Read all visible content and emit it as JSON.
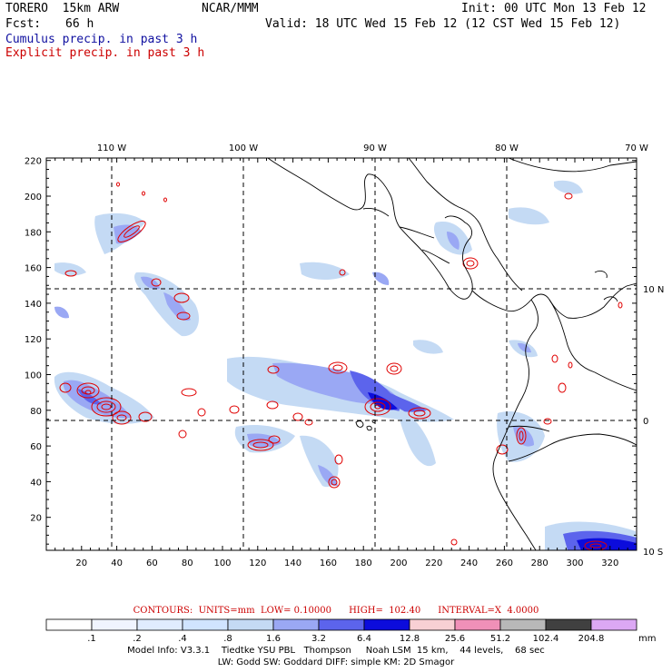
{
  "header": {
    "model": "TORERO  15km ARW",
    "org": "NCAR/MMM",
    "init": "Init: 00 UTC Mon 13 Feb 12",
    "fcst_label": "Fcst:",
    "fcst_value": "66 h",
    "valid": "Valid: 18 UTC Wed 15 Feb 12 (12 CST Wed 15 Feb 12)",
    "legend_cumulus": "Cumulus precip. in past 3 h",
    "legend_explicit": "Explicit precip. in past 3 h"
  },
  "colors": {
    "cumulus_text": "#1010a0",
    "explicit_text": "#cc0000",
    "explicit_contour": "#e00000"
  },
  "map": {
    "lon_labels": [
      "110 W",
      "100 W",
      "90 W",
      "80 W",
      "70 W"
    ],
    "lat_labels": [
      "10 N",
      "0",
      "10 S"
    ],
    "x_ticks": [
      "20",
      "40",
      "60",
      "80",
      "100",
      "120",
      "140",
      "160",
      "180",
      "200",
      "220",
      "240",
      "260",
      "280",
      "300",
      "320"
    ],
    "y_ticks": [
      "20",
      "40",
      "60",
      "80",
      "100",
      "120",
      "140",
      "160",
      "180",
      "200",
      "220"
    ]
  },
  "contours_line": "CONTOURS:  UNITS=mm  LOW= 0.10000      HIGH=  102.40      INTERVAL=X  4.0000",
  "color_scale": {
    "labels": [
      ".1",
      ".2",
      ".4",
      ".8",
      "1.6",
      "3.2",
      "6.4",
      "12.8",
      "25.6",
      "51.2",
      "102.4",
      "204.8"
    ],
    "unit": "mm",
    "colors": [
      "#ffffff",
      "#f0f4ff",
      "#e0ecff",
      "#d0e4ff",
      "#c4daf4",
      "#9aa8f4",
      "#5c64ec",
      "#0c0cdc",
      "#f8d0d4",
      "#f090b8",
      "#b8b8b8",
      "#404040",
      "#dca8f4"
    ]
  },
  "footer": {
    "line1": "Model Info: V3.3.1    Tiedtke YSU PBL   Thompson     Noah LSM  15 km,    44 levels,    68 sec",
    "line2": "LW: Godd SW: Goddard DIFF: simple KM: 2D Smagor"
  }
}
